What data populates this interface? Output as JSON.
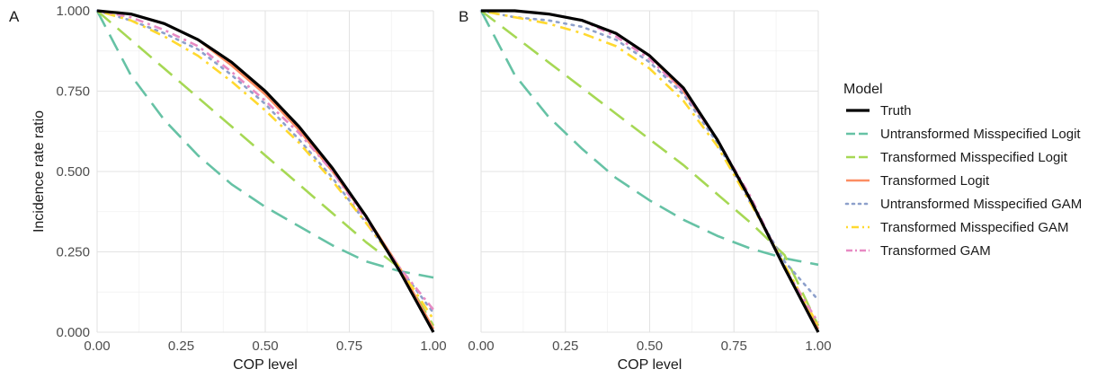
{
  "legend": {
    "title": "Model",
    "entries": [
      {
        "name": "Truth",
        "color": "#000000",
        "dash": "solid"
      },
      {
        "name": "Untransformed Misspecified Logit",
        "color": "#66c2a5",
        "dash": "longdash"
      },
      {
        "name": "Transformed Misspecified Logit",
        "color": "#a6d854",
        "dash": "longdash"
      },
      {
        "name": "Transformed Logit",
        "color": "#fc8d62",
        "dash": "solid"
      },
      {
        "name": "Untransformed Misspecified GAM",
        "color": "#8da0cb",
        "dash": "dotted"
      },
      {
        "name": "Transformed Misspecified GAM",
        "color": "#ffd92f",
        "dash": "dotdash"
      },
      {
        "name": "Transformed GAM",
        "color": "#e78ac3",
        "dash": "twodash"
      }
    ]
  },
  "chart_data": [
    {
      "type": "line",
      "panel_label": "A",
      "xlabel": "COP level",
      "ylabel": "Incidence rate ratio",
      "xlim": [
        0,
        1
      ],
      "ylim": [
        0,
        1
      ],
      "xticks": [
        "0.00",
        "0.25",
        "0.50",
        "0.75",
        "1.00"
      ],
      "yticks": [
        "0.000",
        "0.250",
        "0.500",
        "0.750",
        "1.000"
      ],
      "grid": true,
      "x": [
        0,
        0.1,
        0.2,
        0.3,
        0.4,
        0.5,
        0.6,
        0.7,
        0.8,
        0.9,
        1.0
      ],
      "series": [
        {
          "name": "Truth",
          "values": [
            1.0,
            0.99,
            0.96,
            0.91,
            0.84,
            0.75,
            0.64,
            0.51,
            0.36,
            0.19,
            0.0
          ]
        },
        {
          "name": "Untransformed Misspecified Logit",
          "values": [
            1.0,
            0.8,
            0.66,
            0.55,
            0.46,
            0.39,
            0.33,
            0.27,
            0.22,
            0.19,
            0.17
          ]
        },
        {
          "name": "Transformed Misspecified Logit",
          "values": [
            1.0,
            0.91,
            0.82,
            0.73,
            0.64,
            0.55,
            0.46,
            0.37,
            0.28,
            0.2,
            0.02
          ]
        },
        {
          "name": "Transformed Logit",
          "values": [
            1.0,
            0.99,
            0.96,
            0.91,
            0.83,
            0.74,
            0.63,
            0.5,
            0.36,
            0.2,
            0.01
          ]
        },
        {
          "name": "Untransformed Misspecified GAM",
          "values": [
            1.0,
            0.97,
            0.93,
            0.88,
            0.8,
            0.71,
            0.6,
            0.48,
            0.34,
            0.2,
            0.06
          ]
        },
        {
          "name": "Transformed Misspecified GAM",
          "values": [
            1.0,
            0.97,
            0.92,
            0.86,
            0.78,
            0.69,
            0.59,
            0.47,
            0.34,
            0.2,
            0.04
          ]
        },
        {
          "name": "Transformed GAM",
          "values": [
            1.0,
            0.98,
            0.94,
            0.89,
            0.81,
            0.72,
            0.62,
            0.5,
            0.35,
            0.2,
            0.07
          ]
        }
      ]
    },
    {
      "type": "line",
      "panel_label": "B",
      "xlabel": "COP level",
      "ylabel": "",
      "xlim": [
        0,
        1
      ],
      "ylim": [
        0,
        1
      ],
      "xticks": [
        "0.00",
        "0.25",
        "0.50",
        "0.75",
        "1.00"
      ],
      "yticks": [],
      "grid": true,
      "x": [
        0,
        0.1,
        0.2,
        0.3,
        0.4,
        0.5,
        0.6,
        0.7,
        0.8,
        0.9,
        1.0
      ],
      "series": [
        {
          "name": "Truth",
          "values": [
            1.0,
            1.0,
            0.99,
            0.97,
            0.93,
            0.86,
            0.76,
            0.6,
            0.41,
            0.2,
            0.0
          ]
        },
        {
          "name": "Untransformed Misspecified Logit",
          "values": [
            1.0,
            0.8,
            0.67,
            0.57,
            0.48,
            0.41,
            0.35,
            0.3,
            0.26,
            0.23,
            0.21
          ]
        },
        {
          "name": "Transformed Misspecified Logit",
          "values": [
            1.0,
            0.92,
            0.84,
            0.76,
            0.68,
            0.6,
            0.52,
            0.43,
            0.34,
            0.24,
            0.02
          ]
        },
        {
          "name": "Transformed Logit",
          "values": [
            1.0,
            1.0,
            0.99,
            0.97,
            0.93,
            0.86,
            0.75,
            0.6,
            0.41,
            0.2,
            0.01
          ]
        },
        {
          "name": "Untransformed Misspecified GAM",
          "values": [
            1.0,
            0.98,
            0.97,
            0.95,
            0.91,
            0.84,
            0.74,
            0.59,
            0.4,
            0.22,
            0.1
          ]
        },
        {
          "name": "Transformed Misspecified GAM",
          "values": [
            1.0,
            0.98,
            0.96,
            0.93,
            0.89,
            0.82,
            0.72,
            0.58,
            0.4,
            0.21,
            0.02
          ]
        },
        {
          "name": "Transformed GAM",
          "values": [
            1.0,
            1.0,
            0.99,
            0.97,
            0.92,
            0.85,
            0.75,
            0.6,
            0.42,
            0.2,
            0.03
          ]
        }
      ]
    }
  ]
}
